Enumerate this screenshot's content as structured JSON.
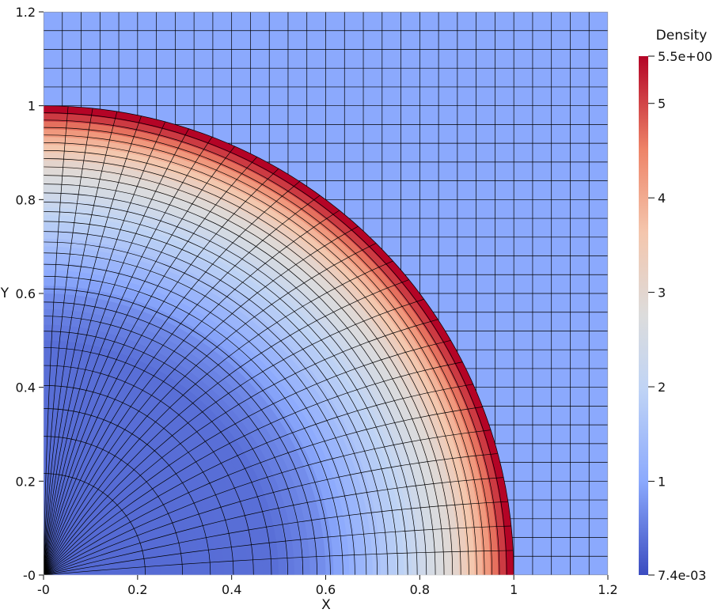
{
  "chart_data": {
    "type": "heatmap",
    "title": "",
    "xlabel": "X",
    "ylabel": "Y",
    "xlim": [
      0,
      1.2
    ],
    "ylim": [
      0,
      1.2
    ],
    "x_ticks": [
      {
        "value": 0,
        "label": "-0"
      },
      {
        "value": 0.2,
        "label": "0.2"
      },
      {
        "value": 0.4,
        "label": "0.4"
      },
      {
        "value": 0.6,
        "label": "0.6"
      },
      {
        "value": 0.8,
        "label": "0.8"
      },
      {
        "value": 1.0,
        "label": "1"
      },
      {
        "value": 1.2,
        "label": "1.2"
      }
    ],
    "y_ticks": [
      {
        "value": 0,
        "label": "-0"
      },
      {
        "value": 0.2,
        "label": "0.2"
      },
      {
        "value": 0.4,
        "label": "0.4"
      },
      {
        "value": 0.6,
        "label": "0.6"
      },
      {
        "value": 0.8,
        "label": "0.8"
      },
      {
        "value": 1.0,
        "label": "1"
      },
      {
        "value": 1.2,
        "label": "1.2"
      }
    ],
    "colorbar": {
      "title": "Density",
      "min": 0.0074,
      "max": 5.5,
      "min_label": "7.4e-03",
      "max_label": "5.5e+00",
      "ticks": [
        {
          "value": 1,
          "label": "1"
        },
        {
          "value": 2,
          "label": "2"
        },
        {
          "value": 3,
          "label": "3"
        },
        {
          "value": 4,
          "label": "4"
        },
        {
          "value": 5,
          "label": "5"
        }
      ],
      "colormap": "cool-to-warm"
    },
    "field": {
      "shock_radius": 1.0,
      "ambient_density": 1.0,
      "peak_density": 5.5,
      "inner_density": 0.35,
      "profile": [
        {
          "r": 0.0,
          "density": 0.3
        },
        {
          "r": 0.5,
          "density": 0.38
        },
        {
          "r": 0.6,
          "density": 0.7
        },
        {
          "r": 0.7,
          "density": 1.4
        },
        {
          "r": 0.8,
          "density": 2.2
        },
        {
          "r": 0.88,
          "density": 3.0
        },
        {
          "r": 0.94,
          "density": 4.0
        },
        {
          "r": 0.98,
          "density": 5.0
        },
        {
          "r": 1.0,
          "density": 5.5
        }
      ]
    },
    "mesh": {
      "outer_grid_spacing": 0.04,
      "inner_mesh": "compressed curvilinear (converging toward shock)"
    },
    "grid": false
  }
}
